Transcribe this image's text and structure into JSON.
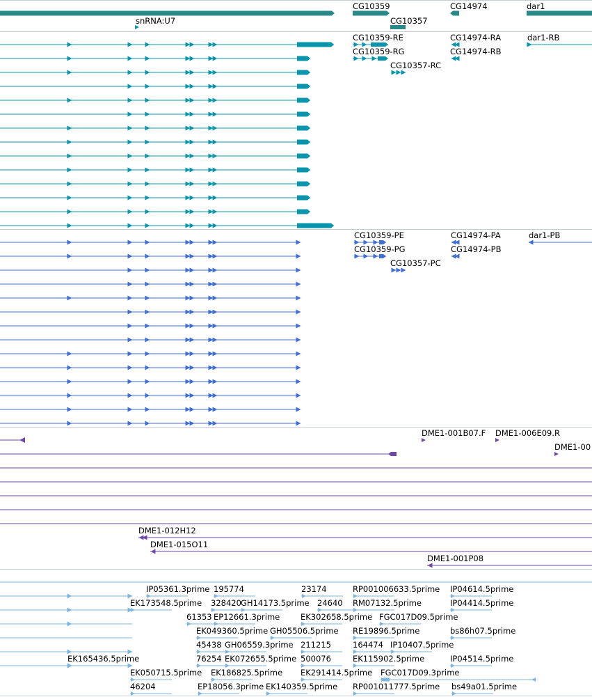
{
  "colors": {
    "gene": "#2a8a8a",
    "mrna": "#0596ad",
    "protein": "#3e6ed6",
    "clone": "#7048a8",
    "est": "#7eb6de",
    "separator": "#c8ccd4"
  },
  "tracks": [
    {
      "id": "genes",
      "color_key": "gene",
      "features": [
        {
          "label": "snRNA:U7"
        },
        {
          "label": "CG10359"
        },
        {
          "label": "CG10357"
        },
        {
          "label": "CG14974"
        },
        {
          "label": "dar1"
        }
      ]
    },
    {
      "id": "mrna",
      "color_key": "mrna",
      "features": [
        {
          "label": "CG10359-RE"
        },
        {
          "label": "CG10359-RG"
        },
        {
          "label": "CG10357-RC"
        },
        {
          "label": "CG14974-RA"
        },
        {
          "label": "CG14974-RB"
        },
        {
          "label": "dar1-RB"
        }
      ]
    },
    {
      "id": "protein",
      "color_key": "protein",
      "features": [
        {
          "label": "CG10359-PE"
        },
        {
          "label": "CG10359-PG"
        },
        {
          "label": "CG10357-PC"
        },
        {
          "label": "CG14974-PA"
        },
        {
          "label": "CG14974-PB"
        },
        {
          "label": "dar1-PB"
        }
      ]
    },
    {
      "id": "clones",
      "color_key": "clone",
      "features": [
        {
          "label": "DME1-001B07.F"
        },
        {
          "label": "DME1-006E09.R"
        },
        {
          "label": "DME1-00"
        },
        {
          "label": "DME1-012H12"
        },
        {
          "label": "DME1-015O11"
        },
        {
          "label": "DME1-001P08"
        }
      ]
    },
    {
      "id": "est",
      "color_key": "est",
      "features": [
        {
          "label": "IP05361.3prime"
        },
        {
          "label": "195774"
        },
        {
          "label": "23174"
        },
        {
          "label": "RP001006633.5prime"
        },
        {
          "label": "IP04614.5prime"
        },
        {
          "label": "EK173548.5prime"
        },
        {
          "label": "328420"
        },
        {
          "label": "GH14173.5prime"
        },
        {
          "label": "24640"
        },
        {
          "label": "RM07132.5prime"
        },
        {
          "label": "IP04414.5prime"
        },
        {
          "label": "61353"
        },
        {
          "label": "EP12661.3prime"
        },
        {
          "label": "EK302658.5prime"
        },
        {
          "label": "FGC017D09.5prime"
        },
        {
          "label": "EK049360.5prime"
        },
        {
          "label": "GH05506.5prime"
        },
        {
          "label": "RE19896.5prime"
        },
        {
          "label": "bs86h07.5prime"
        },
        {
          "label": "45438"
        },
        {
          "label": "GH06559.3prime"
        },
        {
          "label": "211215"
        },
        {
          "label": "164474"
        },
        {
          "label": "IP10407.5prime"
        },
        {
          "label": "EK165436.5prime"
        },
        {
          "label": "76254"
        },
        {
          "label": "EK072655.5prime"
        },
        {
          "label": "500076"
        },
        {
          "label": "EK115902.5prime"
        },
        {
          "label": "IP04514.5prime"
        },
        {
          "label": "EK050715.5prime"
        },
        {
          "label": "EK186825.5prime"
        },
        {
          "label": "EK291414.5prime"
        },
        {
          "label": "FGC017D09.3prime"
        },
        {
          "label": "46204"
        },
        {
          "label": "EP18056.3prime"
        },
        {
          "label": "EK140359.5prime"
        },
        {
          "label": "RP001011777.5prime"
        },
        {
          "label": "bs49a01.5prime"
        }
      ]
    }
  ]
}
